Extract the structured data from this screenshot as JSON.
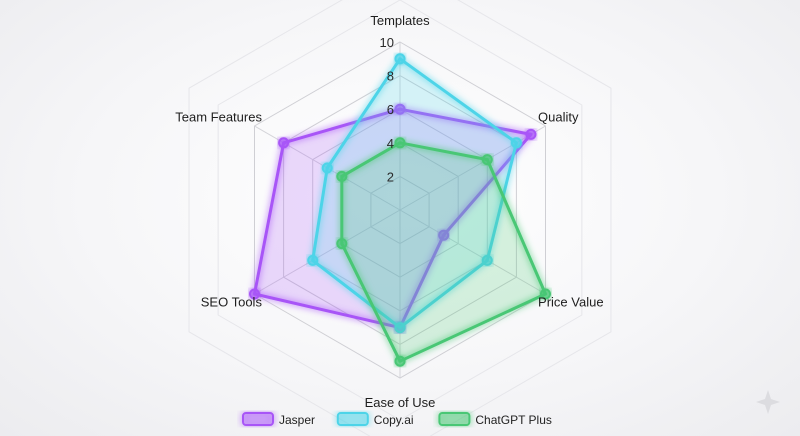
{
  "chart_data": {
    "type": "radar",
    "axes": [
      "Templates",
      "Quality",
      "Price Value",
      "Ease of Use",
      "SEO Tools",
      "Team Features"
    ],
    "rlim": [
      0,
      10
    ],
    "ticks": [
      2,
      4,
      6,
      8,
      10
    ],
    "legend_position": "bottom",
    "series": [
      {
        "name": "Jasper",
        "color": "#a855f7",
        "values": [
          6,
          9,
          3,
          7,
          10,
          8
        ]
      },
      {
        "name": "Copy.ai",
        "color": "#4dd4e8",
        "values": [
          9,
          8,
          6,
          7,
          6,
          5
        ]
      },
      {
        "name": "ChatGPT Plus",
        "color": "#48c774",
        "values": [
          4,
          6,
          10,
          9,
          4,
          4
        ]
      }
    ]
  }
}
